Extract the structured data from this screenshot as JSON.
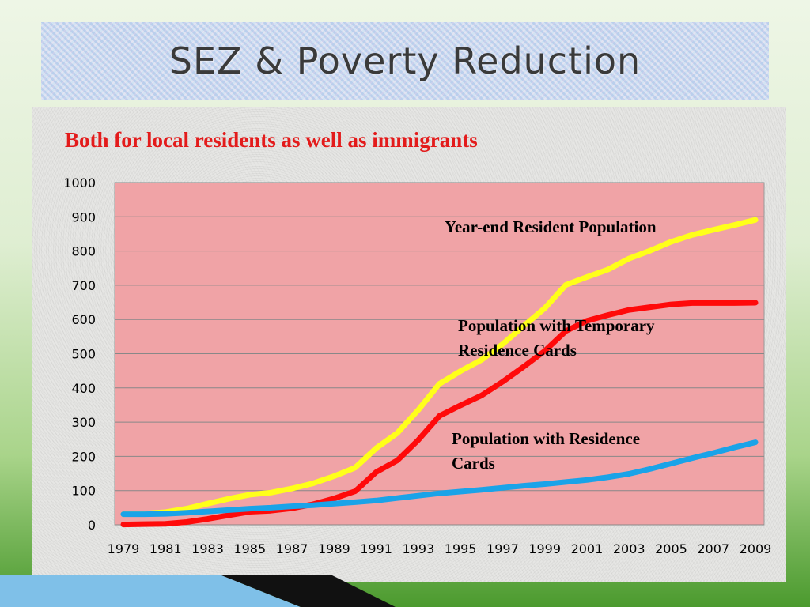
{
  "slide": {
    "title": "SEZ & Poverty Reduction",
    "subtitle": "Both for local residents as well as immigrants"
  },
  "colors": {
    "plot_background": "#f0a3a6",
    "gridline": "#888888",
    "title_text": "#3a3a3a",
    "subtitle_text": "#e31b1b"
  },
  "chart_data": {
    "type": "line",
    "title": "",
    "xlabel": "",
    "ylabel": "",
    "ylim": [
      0,
      1000
    ],
    "yticks": [
      0,
      100,
      200,
      300,
      400,
      500,
      600,
      700,
      800,
      900,
      1000
    ],
    "x": [
      1979,
      1980,
      1981,
      1982,
      1983,
      1984,
      1985,
      1986,
      1987,
      1988,
      1989,
      1990,
      1991,
      1992,
      1993,
      1994,
      1995,
      1996,
      1997,
      1998,
      1999,
      2000,
      2001,
      2002,
      2003,
      2004,
      2005,
      2006,
      2007,
      2008,
      2009
    ],
    "x_tick_labels": [
      "1979",
      "1981",
      "1983",
      "1985",
      "1987",
      "1989",
      "1991",
      "1993",
      "1995",
      "1997",
      "1999",
      "2001",
      "2003",
      "2005",
      "2007",
      "2009"
    ],
    "grid": true,
    "series": [
      {
        "name": "Year-end Resident Population",
        "color": "#ffff1a",
        "values": [
          31,
          33,
          37,
          47,
          62,
          76,
          88,
          94,
          106,
          121,
          142,
          167,
          224,
          268,
          336,
          412,
          449,
          482,
          528,
          581,
          633,
          701,
          724,
          746,
          778,
          801,
          827,
          847,
          862,
          876,
          891
        ]
      },
      {
        "name": "Population with Temporary Residence  Cards",
        "color": "#ff0a0a",
        "values": [
          1,
          2,
          3,
          8,
          17,
          28,
          38,
          41,
          48,
          60,
          77,
          98,
          154,
          188,
          248,
          318,
          349,
          378,
          418,
          462,
          508,
          566,
          596,
          613,
          628,
          636,
          644,
          648,
          648,
          648,
          649
        ]
      },
      {
        "name": "Population with Residence Cards",
        "color": "#1aa3e8",
        "values": [
          31,
          31,
          32,
          35,
          39,
          43,
          47,
          50,
          54,
          57,
          62,
          66,
          71,
          78,
          85,
          92,
          97,
          102,
          108,
          114,
          119,
          125,
          131,
          139,
          149,
          163,
          179,
          195,
          210,
          226,
          241
        ]
      }
    ],
    "annotations": [
      {
        "text": "Year-end Resident Population",
        "series": "Year-end Resident Population"
      },
      {
        "text": "Population with Temporary\nResidence  Cards",
        "series": "Population with Temporary Residence  Cards"
      },
      {
        "text": "Population with Residence\nCards",
        "series": "Population with Residence Cards"
      }
    ]
  }
}
